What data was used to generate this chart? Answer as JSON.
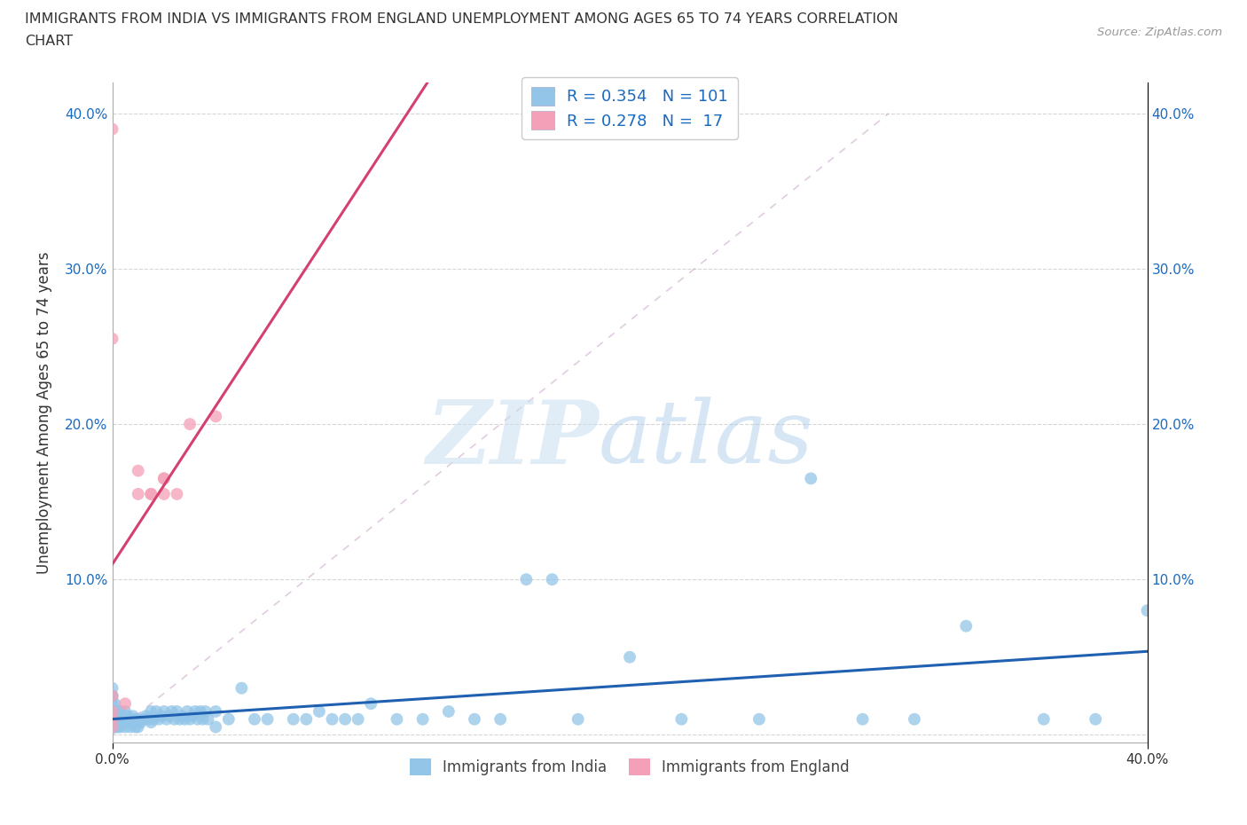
{
  "title_line1": "IMMIGRANTS FROM INDIA VS IMMIGRANTS FROM ENGLAND UNEMPLOYMENT AMONG AGES 65 TO 74 YEARS CORRELATION",
  "title_line2": "CHART",
  "source_text": "Source: ZipAtlas.com",
  "ylabel": "Unemployment Among Ages 65 to 74 years",
  "xlim": [
    0.0,
    0.4
  ],
  "ylim": [
    -0.005,
    0.42
  ],
  "india_color": "#92c5e8",
  "england_color": "#f4a0b8",
  "india_line_color": "#2060b0",
  "england_line_color": "#d44070",
  "india_R": 0.354,
  "india_N": 101,
  "england_R": 0.278,
  "england_N": 17,
  "legend_text_color": "#1a6abf",
  "india_x": [
    0.0,
    0.0,
    0.0,
    0.0,
    0.0,
    0.0,
    0.0,
    0.0,
    0.0,
    0.0,
    0.0,
    0.0,
    0.0,
    0.0,
    0.0,
    0.001,
    0.001,
    0.001,
    0.001,
    0.001,
    0.002,
    0.002,
    0.002,
    0.002,
    0.003,
    0.003,
    0.003,
    0.004,
    0.004,
    0.005,
    0.005,
    0.005,
    0.006,
    0.006,
    0.007,
    0.007,
    0.008,
    0.008,
    0.009,
    0.009,
    0.01,
    0.01,
    0.011,
    0.012,
    0.013,
    0.014,
    0.015,
    0.015,
    0.016,
    0.017,
    0.018,
    0.019,
    0.02,
    0.021,
    0.022,
    0.023,
    0.024,
    0.025,
    0.026,
    0.027,
    0.028,
    0.029,
    0.03,
    0.031,
    0.032,
    0.033,
    0.034,
    0.035,
    0.036,
    0.037,
    0.04,
    0.04,
    0.045,
    0.05,
    0.055,
    0.06,
    0.07,
    0.075,
    0.08,
    0.085,
    0.09,
    0.095,
    0.1,
    0.11,
    0.12,
    0.13,
    0.14,
    0.15,
    0.16,
    0.17,
    0.18,
    0.2,
    0.22,
    0.25,
    0.27,
    0.29,
    0.31,
    0.33,
    0.36,
    0.38,
    0.4
  ],
  "india_y": [
    0.005,
    0.005,
    0.005,
    0.008,
    0.01,
    0.01,
    0.01,
    0.01,
    0.015,
    0.015,
    0.015,
    0.02,
    0.025,
    0.025,
    0.03,
    0.005,
    0.008,
    0.01,
    0.015,
    0.02,
    0.005,
    0.008,
    0.01,
    0.015,
    0.005,
    0.01,
    0.015,
    0.008,
    0.012,
    0.005,
    0.01,
    0.015,
    0.008,
    0.012,
    0.005,
    0.01,
    0.008,
    0.012,
    0.005,
    0.01,
    0.005,
    0.01,
    0.008,
    0.01,
    0.012,
    0.01,
    0.008,
    0.015,
    0.01,
    0.015,
    0.01,
    0.012,
    0.015,
    0.01,
    0.012,
    0.015,
    0.01,
    0.015,
    0.01,
    0.012,
    0.01,
    0.015,
    0.01,
    0.012,
    0.015,
    0.01,
    0.015,
    0.01,
    0.015,
    0.01,
    0.005,
    0.015,
    0.01,
    0.03,
    0.01,
    0.01,
    0.01,
    0.01,
    0.015,
    0.01,
    0.01,
    0.01,
    0.02,
    0.01,
    0.01,
    0.015,
    0.01,
    0.01,
    0.1,
    0.1,
    0.01,
    0.05,
    0.01,
    0.01,
    0.165,
    0.01,
    0.01,
    0.07,
    0.01,
    0.01,
    0.08
  ],
  "england_x": [
    0.0,
    0.0,
    0.0,
    0.0,
    0.0,
    0.0,
    0.005,
    0.01,
    0.01,
    0.015,
    0.015,
    0.02,
    0.02,
    0.02,
    0.025,
    0.03,
    0.04
  ],
  "england_y": [
    0.005,
    0.01,
    0.015,
    0.025,
    0.39,
    0.255,
    0.02,
    0.155,
    0.17,
    0.155,
    0.155,
    0.155,
    0.165,
    0.165,
    0.155,
    0.2,
    0.205
  ]
}
